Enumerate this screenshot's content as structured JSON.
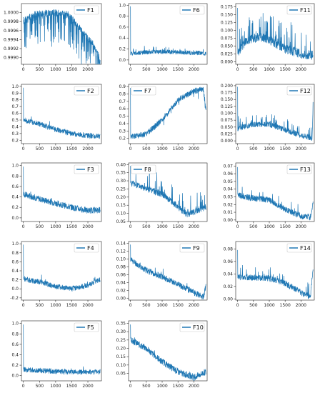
{
  "chart_data": [
    {
      "type": "line",
      "series": [
        {
          "name": "F1",
          "color": "#1f77b4"
        }
      ],
      "xlim": [
        -60,
        2420
      ],
      "ylim": [
        0.99885,
        1.0002
      ],
      "xticks": [
        0,
        500,
        1000,
        1500,
        2000
      ],
      "yticks": [
        0.999,
        0.9992,
        0.9994,
        0.9996,
        0.9998,
        1.0
      ],
      "ytick_labels": [
        "0.9990",
        "0.9992",
        "0.9994",
        "0.9996",
        "0.9998",
        "1.0000"
      ],
      "legend": "top-right"
    },
    {
      "type": "line",
      "series": [
        {
          "name": "F6",
          "color": "#1f77b4"
        }
      ],
      "xlim": [
        -60,
        2420
      ],
      "ylim": [
        -0.08,
        1.03
      ],
      "xticks": [
        0,
        500,
        1000,
        1500,
        2000
      ],
      "yticks": [
        0.0,
        0.2,
        0.4,
        0.6,
        0.8,
        1.0
      ],
      "ytick_labels": [
        "0.0",
        "0.2",
        "0.4",
        "0.6",
        "0.8",
        "1.0"
      ],
      "legend": "top-right"
    },
    {
      "type": "line",
      "series": [
        {
          "name": "F11",
          "color": "#1f77b4"
        }
      ],
      "xlim": [
        -60,
        2420
      ],
      "ylim": [
        -0.008,
        0.185
      ],
      "xticks": [
        0,
        500,
        1000,
        1500,
        2000
      ],
      "yticks": [
        0.0,
        0.025,
        0.05,
        0.075,
        0.1,
        0.125,
        0.15,
        0.175
      ],
      "ytick_labels": [
        "0.000",
        "0.025",
        "0.050",
        "0.075",
        "0.100",
        "0.125",
        "0.150",
        "0.175"
      ],
      "legend": "top-right"
    },
    {
      "type": "line",
      "series": [
        {
          "name": "F2",
          "color": "#1f77b4"
        }
      ],
      "xlim": [
        -60,
        2420
      ],
      "ylim": [
        0.15,
        1.03
      ],
      "xticks": [
        0,
        500,
        1000,
        1500,
        2000
      ],
      "yticks": [
        0.2,
        0.3,
        0.4,
        0.5,
        0.6,
        0.7,
        0.8,
        0.9,
        1.0
      ],
      "ytick_labels": [
        "0.2",
        "0.3",
        "0.4",
        "0.5",
        "0.6",
        "0.7",
        "0.8",
        "0.9",
        "1.0"
      ],
      "legend": "top-right"
    },
    {
      "type": "line",
      "series": [
        {
          "name": "F7",
          "color": "#1f77b4"
        }
      ],
      "xlim": [
        -60,
        2420
      ],
      "ylim": [
        0.13,
        0.93
      ],
      "xticks": [
        0,
        500,
        1000,
        1500,
        2000
      ],
      "yticks": [
        0.2,
        0.3,
        0.4,
        0.5,
        0.6,
        0.7,
        0.8,
        0.9
      ],
      "ytick_labels": [
        "0.2",
        "0.3",
        "0.4",
        "0.5",
        "0.6",
        "0.7",
        "0.8",
        "0.9"
      ],
      "legend": "top-left"
    },
    {
      "type": "line",
      "series": [
        {
          "name": "F12",
          "color": "#1f77b4"
        }
      ],
      "xlim": [
        -60,
        2420
      ],
      "ylim": [
        -0.01,
        0.205
      ],
      "xticks": [
        0,
        500,
        1000,
        1500,
        2000
      ],
      "yticks": [
        0.0,
        0.025,
        0.05,
        0.075,
        0.1,
        0.125,
        0.15,
        0.175,
        0.2
      ],
      "ytick_labels": [
        "0.000",
        "0.025",
        "0.050",
        "0.075",
        "0.100",
        "0.125",
        "0.150",
        "0.175",
        "0.200"
      ],
      "legend": "top-right"
    },
    {
      "type": "line",
      "series": [
        {
          "name": "F3",
          "color": "#1f77b4"
        }
      ],
      "xlim": [
        -60,
        2420
      ],
      "ylim": [
        -0.07,
        1.05
      ],
      "xticks": [
        0,
        500,
        1000,
        1500,
        2000
      ],
      "yticks": [
        0.0,
        0.2,
        0.4,
        0.6,
        0.8,
        1.0
      ],
      "ytick_labels": [
        "0.0",
        "0.2",
        "0.4",
        "0.6",
        "0.8",
        "1.0"
      ],
      "legend": "top-right"
    },
    {
      "type": "line",
      "series": [
        {
          "name": "F8",
          "color": "#1f77b4"
        }
      ],
      "xlim": [
        -60,
        2420
      ],
      "ylim": [
        0.05,
        0.41
      ],
      "xticks": [
        0,
        500,
        1000,
        1500,
        2000
      ],
      "yticks": [
        0.05,
        0.1,
        0.15,
        0.2,
        0.25,
        0.3,
        0.35,
        0.4
      ],
      "ytick_labels": [
        "0.05",
        "0.10",
        "0.15",
        "0.20",
        "0.25",
        "0.30",
        "0.35",
        "0.40"
      ],
      "legend": "top-left"
    },
    {
      "type": "line",
      "series": [
        {
          "name": "F13",
          "color": "#1f77b4"
        }
      ],
      "xlim": [
        -60,
        2420
      ],
      "ylim": [
        -0.002,
        0.074
      ],
      "xticks": [
        0,
        500,
        1000,
        1500,
        2000
      ],
      "yticks": [
        0.0,
        0.01,
        0.02,
        0.03,
        0.04,
        0.05,
        0.06,
        0.07
      ],
      "ytick_labels": [
        "0.00",
        "0.01",
        "0.02",
        "0.03",
        "0.04",
        "0.05",
        "0.06",
        "0.07"
      ],
      "legend": "top-right"
    },
    {
      "type": "line",
      "series": [
        {
          "name": "F4",
          "color": "#1f77b4"
        }
      ],
      "xlim": [
        -60,
        2420
      ],
      "ylim": [
        -0.25,
        1.05
      ],
      "xticks": [
        0,
        500,
        1000,
        1500,
        2000
      ],
      "yticks": [
        -0.2,
        0.0,
        0.2,
        0.4,
        0.6,
        0.8,
        1.0
      ],
      "ytick_labels": [
        "-0.2",
        "0.0",
        "0.2",
        "0.4",
        "0.6",
        "0.8",
        "1.0"
      ],
      "legend": "top-right"
    },
    {
      "type": "line",
      "series": [
        {
          "name": "F9",
          "color": "#1f77b4"
        }
      ],
      "xlim": [
        -60,
        2420
      ],
      "ylim": [
        -0.005,
        0.145
      ],
      "xticks": [
        0,
        500,
        1000,
        1500,
        2000
      ],
      "yticks": [
        0.0,
        0.02,
        0.04,
        0.06,
        0.08,
        0.1,
        0.12,
        0.14
      ],
      "ytick_labels": [
        "0.00",
        "0.02",
        "0.04",
        "0.06",
        "0.08",
        "0.10",
        "0.12",
        "0.14"
      ],
      "legend": "top-right"
    },
    {
      "type": "line",
      "series": [
        {
          "name": "F14",
          "color": "#1f77b4"
        }
      ],
      "xlim": [
        -60,
        2420
      ],
      "ylim": [
        -0.002,
        0.092
      ],
      "xticks": [
        0,
        500,
        1000,
        1500,
        2000
      ],
      "yticks": [
        0.0,
        0.02,
        0.04,
        0.06,
        0.08
      ],
      "ytick_labels": [
        "0.00",
        "0.02",
        "0.04",
        "0.06",
        "0.08"
      ],
      "legend": "top-right"
    },
    {
      "type": "line",
      "series": [
        {
          "name": "F5",
          "color": "#1f77b4"
        }
      ],
      "xlim": [
        -60,
        2420
      ],
      "ylim": [
        -0.1,
        1.05
      ],
      "xticks": [
        0,
        500,
        1000,
        1500,
        2000
      ],
      "yticks": [
        0.0,
        0.2,
        0.4,
        0.6,
        0.8,
        1.0
      ],
      "ytick_labels": [
        "0.0",
        "0.2",
        "0.4",
        "0.6",
        "0.8",
        "1.0"
      ],
      "legend": "top-right"
    },
    {
      "type": "line",
      "series": [
        {
          "name": "F10",
          "color": "#1f77b4"
        }
      ],
      "xlim": [
        -60,
        2420
      ],
      "ylim": [
        0.005,
        0.365
      ],
      "xticks": [
        0,
        500,
        1000,
        1500,
        2000
      ],
      "yticks": [
        0.05,
        0.1,
        0.15,
        0.2,
        0.25,
        0.3,
        0.35
      ],
      "ytick_labels": [
        "0.05",
        "0.10",
        "0.15",
        "0.20",
        "0.25",
        "0.30",
        "0.35"
      ],
      "legend": "top-right"
    }
  ]
}
